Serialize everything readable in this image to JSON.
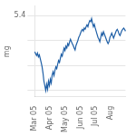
{
  "chart_data": {
    "type": "line",
    "ylabel": "mg",
    "categories": [
      "Mar 05",
      null,
      null,
      null,
      null,
      null,
      null,
      null,
      null,
      null,
      null,
      null,
      null,
      null,
      null,
      null,
      "Apr 05",
      null,
      null,
      null,
      null,
      null,
      null,
      null,
      null,
      null,
      null,
      null,
      null,
      null,
      null,
      null,
      null,
      "May 05",
      null,
      null,
      null,
      null,
      null,
      null,
      null,
      null,
      null,
      null,
      null,
      null,
      null,
      null,
      null,
      null,
      "Jun 05",
      null,
      null,
      null,
      null,
      null,
      null,
      null,
      null,
      null,
      null,
      null,
      null,
      null,
      null,
      null,
      "Jul 05",
      null,
      null,
      null,
      null,
      null,
      null,
      null,
      null,
      null,
      null,
      null,
      null,
      null,
      null,
      null,
      null,
      "Aug",
      null,
      null,
      null,
      null,
      null,
      null,
      null,
      null,
      null,
      null,
      null,
      null,
      null,
      null,
      null,
      null
    ],
    "values": [
      4.82,
      4.79,
      4.76,
      4.8,
      4.74,
      4.77,
      4.71,
      4.65,
      4.58,
      4.48,
      4.35,
      4.28,
      4.2,
      4.3,
      4.22,
      4.35,
      4.28,
      4.38,
      4.32,
      4.45,
      4.5,
      4.44,
      4.52,
      4.58,
      4.55,
      4.62,
      4.68,
      4.65,
      4.72,
      4.78,
      4.75,
      4.82,
      4.88,
      4.84,
      4.91,
      4.88,
      4.95,
      4.92,
      4.98,
      5.02,
      4.98,
      4.95,
      4.92,
      4.88,
      4.85,
      4.92,
      4.96,
      5.0,
      5.05,
      5.08,
      5.12,
      5.16,
      5.18,
      5.15,
      5.2,
      5.18,
      5.22,
      5.25,
      5.22,
      5.28,
      5.32,
      5.3,
      5.35,
      5.28,
      5.22,
      5.26,
      5.2,
      5.15,
      5.1,
      5.05,
      5.02,
      4.98,
      5.05,
      5.12,
      5.08,
      5.14,
      5.1,
      5.06,
      5.02,
      4.98,
      4.95,
      4.98,
      5.05,
      5.08,
      5.12,
      5.08,
      5.04,
      5.08,
      5.12,
      5.16,
      5.18,
      5.15,
      5.1,
      5.08,
      5.12,
      5.16,
      5.18,
      5.2,
      5.18,
      5.15
    ],
    "color": "#1f5fa6",
    "ylim": [
      4.1,
      5.55
    ],
    "yticks": [
      {
        "value": 4.2,
        "label": null
      },
      {
        "value": 4.6,
        "label": null
      },
      {
        "value": 5.0,
        "label": null
      },
      {
        "value": 5.4,
        "label": "5.4"
      }
    ],
    "grid": "y"
  }
}
